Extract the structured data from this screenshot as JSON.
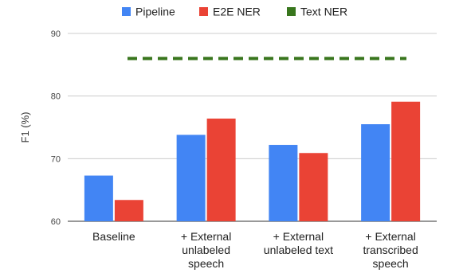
{
  "chart_data": {
    "type": "bar",
    "ylabel": "F1 (%)",
    "ylim": [
      60,
      90
    ],
    "yticks": [
      60,
      70,
      80,
      90
    ],
    "grid": true,
    "legend_position": "top",
    "categories": [
      [
        "Baseline"
      ],
      [
        "+ External",
        "unlabeled",
        "speech"
      ],
      [
        "+ External",
        "unlabeled text"
      ],
      [
        "+ External",
        "transcribed",
        "speech"
      ]
    ],
    "series": [
      {
        "name": "Pipeline",
        "color": "#4285f4",
        "values": [
          67.3,
          73.8,
          72.2,
          75.5
        ]
      },
      {
        "name": "E2E NER",
        "color": "#ea4335",
        "values": [
          63.4,
          76.4,
          70.9,
          79.1
        ]
      }
    ],
    "reference_line": {
      "name": "Text NER",
      "color": "#38761d",
      "value": 86,
      "style": "dashed"
    }
  }
}
